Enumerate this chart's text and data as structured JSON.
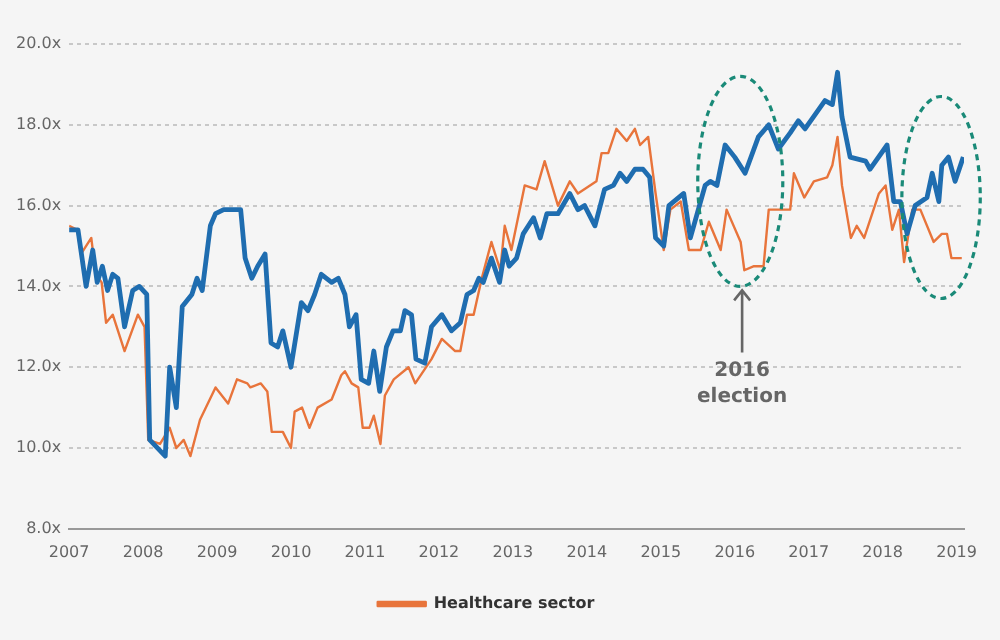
{
  "chart_data": {
    "type": "line",
    "xlim": [
      2007,
      2019.1
    ],
    "xticks": [
      2007,
      2008,
      2009,
      2010,
      2011,
      2012,
      2013,
      2014,
      2015,
      2016,
      2017,
      2018,
      2019
    ],
    "ylim": [
      8,
      20
    ],
    "yticks": [
      {
        "value": 8,
        "label": "8.0x"
      },
      {
        "value": 10,
        "label": "10.0x"
      },
      {
        "value": 12,
        "label": "12.0x"
      },
      {
        "value": 14,
        "label": "14.0x"
      },
      {
        "value": 16,
        "label": "16.0x"
      },
      {
        "value": 18,
        "label": "18.0x"
      },
      {
        "value": 20,
        "label": "20.0x"
      }
    ],
    "grid": "y",
    "legend": "bottom",
    "marker": "none",
    "series": [
      {
        "color": "#1f6db0",
        "x": [
          2007,
          2007.12,
          2007.23,
          2007.32,
          2007.38,
          2007.45,
          2007.52,
          2007.59,
          2007.66,
          2007.75,
          2007.86,
          2007.95,
          2008.05,
          2008.09,
          2008.3,
          2008.36,
          2008.45,
          2008.53,
          2008.66,
          2008.73,
          2008.8,
          2008.91,
          2008.98,
          2009.09,
          2009.16,
          2009.32,
          2009.38,
          2009.47,
          2009.55,
          2009.65,
          2009.73,
          2009.82,
          2009.89,
          2010,
          2010.14,
          2010.23,
          2010.32,
          2010.41,
          2010.55,
          2010.64,
          2010.73,
          2010.79,
          2010.88,
          2010.95,
          2011.05,
          2011.12,
          2011.2,
          2011.29,
          2011.38,
          2011.48,
          2011.54,
          2011.63,
          2011.69,
          2011.81,
          2011.9,
          2012.04,
          2012.17,
          2012.29,
          2012.38,
          2012.47,
          2012.54,
          2012.6,
          2012.71,
          2012.82,
          2012.89,
          2012.95,
          2013.05,
          2013.14,
          2013.28,
          2013.37,
          2013.46,
          2013.61,
          2013.77,
          2013.88,
          2013.97,
          2014.11,
          2014.24,
          2014.36,
          2014.45,
          2014.54,
          2014.65,
          2014.76,
          2014.85,
          2014.93,
          2015.04,
          2015.11,
          2015.31,
          2015.4,
          2015.6,
          2015.67,
          2015.76,
          2015.87,
          2016,
          2016.14,
          2016.32,
          2016.46,
          2016.59,
          2016.75,
          2016.86,
          2016.95,
          2017.22,
          2017.32,
          2017.39,
          2017.45,
          2017.56,
          2017.77,
          2017.83,
          2018.06,
          2018.15,
          2018.24,
          2018.33,
          2018.44,
          2018.6,
          2018.67,
          2018.76,
          2018.8,
          2018.89,
          2018.98,
          2019.09
        ],
        "values": [
          15.4,
          15.4,
          14,
          14.9,
          14.1,
          14.5,
          13.9,
          14.3,
          14.2,
          13,
          13.9,
          14,
          13.8,
          10.2,
          9.8,
          12,
          11,
          13.5,
          13.8,
          14.2,
          13.9,
          15.5,
          15.8,
          15.9,
          15.9,
          15.9,
          14.7,
          14.2,
          14.5,
          14.8,
          12.6,
          12.5,
          12.9,
          12,
          13.6,
          13.4,
          13.8,
          14.3,
          14.1,
          14.2,
          13.8,
          13,
          13.3,
          11.7,
          11.6,
          12.4,
          11.4,
          12.5,
          12.9,
          12.9,
          13.4,
          13.3,
          12.2,
          12.1,
          13,
          13.3,
          12.9,
          13.1,
          13.8,
          13.9,
          14.2,
          14.1,
          14.7,
          14.1,
          14.9,
          14.5,
          14.7,
          15.3,
          15.7,
          15.2,
          15.8,
          15.8,
          16.3,
          15.9,
          16,
          15.5,
          16.4,
          16.5,
          16.8,
          16.6,
          16.9,
          16.9,
          16.7,
          15.2,
          15,
          16,
          16.3,
          15.2,
          16.5,
          16.6,
          16.5,
          17.5,
          17.2,
          16.8,
          17.7,
          18,
          17.4,
          17.8,
          18.1,
          17.9,
          18.6,
          18.5,
          19.3,
          18.2,
          17.2,
          17.1,
          16.9,
          17.5,
          16.1,
          16.1,
          15.3,
          16,
          16.2,
          16.8,
          16.1,
          17,
          17.2,
          16.6,
          17.2
        ]
      },
      {
        "name": "Healthcare sector",
        "color": "#e8743b",
        "x": [
          2007,
          2007.11,
          2007.16,
          2007.3,
          2007.36,
          2007.44,
          2007.5,
          2007.59,
          2007.75,
          2007.93,
          2008.02,
          2008.07,
          2008.23,
          2008.36,
          2008.45,
          2008.55,
          2008.64,
          2008.77,
          2008.98,
          2009.15,
          2009.27,
          2009.41,
          2009.45,
          2009.59,
          2009.68,
          2009.74,
          2009.89,
          2010,
          2010.05,
          2010.15,
          2010.25,
          2010.36,
          2010.55,
          2010.68,
          2010.73,
          2010.82,
          2010.91,
          2010.97,
          2011.06,
          2011.12,
          2011.21,
          2011.27,
          2011.39,
          2011.59,
          2011.68,
          2011.9,
          2012.04,
          2012.22,
          2012.29,
          2012.38,
          2012.47,
          2012.58,
          2012.71,
          2012.83,
          2012.89,
          2012.98,
          2013.16,
          2013.32,
          2013.43,
          2013.61,
          2013.77,
          2013.88,
          2014.13,
          2014.2,
          2014.29,
          2014.4,
          2014.54,
          2014.65,
          2014.72,
          2014.83,
          2014.93,
          2015.04,
          2015.13,
          2015.27,
          2015.38,
          2015.54,
          2015.65,
          2015.81,
          2015.89,
          2016.08,
          2016.13,
          2016.26,
          2016.39,
          2016.46,
          2016.75,
          2016.8,
          2016.94,
          2017.07,
          2017.25,
          2017.32,
          2017.39,
          2017.45,
          2017.57,
          2017.65,
          2017.75,
          2017.95,
          2018.04,
          2018.13,
          2018.22,
          2018.29,
          2018.4,
          2018.51,
          2018.69,
          2018.8,
          2018.87,
          2018.93,
          2019.07
        ],
        "values": [
          15.5,
          15.4,
          14.8,
          15.2,
          14.3,
          14.1,
          13.1,
          13.3,
          12.4,
          13.3,
          13,
          10.2,
          10.1,
          10.5,
          10,
          10.2,
          9.8,
          10.7,
          11.5,
          11.1,
          11.7,
          11.6,
          11.5,
          11.6,
          11.4,
          10.4,
          10.4,
          10,
          10.9,
          11,
          10.5,
          11,
          11.2,
          11.8,
          11.9,
          11.6,
          11.5,
          10.5,
          10.5,
          10.8,
          10.1,
          11.3,
          11.7,
          12,
          11.6,
          12.2,
          12.7,
          12.4,
          12.4,
          13.3,
          13.3,
          14.2,
          15.1,
          14.4,
          15.5,
          14.9,
          16.5,
          16.4,
          17.1,
          16,
          16.6,
          16.3,
          16.6,
          17.3,
          17.3,
          17.9,
          17.6,
          17.9,
          17.5,
          17.7,
          16.3,
          14.9,
          15.9,
          16.1,
          14.9,
          14.9,
          15.6,
          14.9,
          15.9,
          15.1,
          14.4,
          14.5,
          14.5,
          15.9,
          15.9,
          16.8,
          16.2,
          16.6,
          16.7,
          17,
          17.7,
          16.5,
          15.2,
          15.5,
          15.2,
          16.3,
          16.5,
          15.4,
          15.9,
          14.6,
          15.9,
          15.9,
          15.1,
          15.3,
          15.3,
          14.7,
          14.7
        ]
      }
    ],
    "annotations": [
      "2016 election"
    ]
  }
}
